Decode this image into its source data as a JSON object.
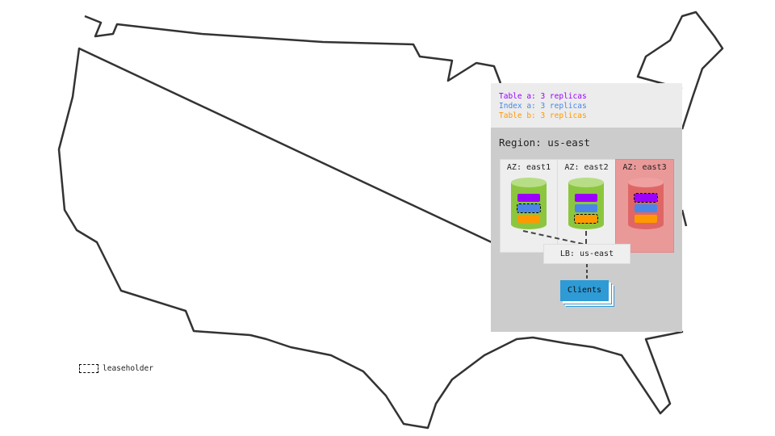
{
  "legend": [
    {
      "label": "Table a: 3 replicas",
      "color": "#9b00ff"
    },
    {
      "label": "Index a: 3 replicas",
      "color": "#4a86e8"
    },
    {
      "label": "Table b: 3 replicas",
      "color": "#ff9900"
    }
  ],
  "region": "Region: us-east",
  "azs": [
    {
      "label": "AZ: east1",
      "status": "healthy",
      "leaseholder": "Index a"
    },
    {
      "label": "AZ: east2",
      "status": "healthy",
      "leaseholder": "Table b"
    },
    {
      "label": "AZ: east3",
      "status": "failed",
      "leaseholder": "Table a"
    }
  ],
  "load_balancer": "LB: us-east",
  "clients": "Clients",
  "key": "leaseholder",
  "colors": {
    "healthy": "#8cc63f",
    "failed": "#e06666",
    "failed_bg": "#ea9999"
  }
}
